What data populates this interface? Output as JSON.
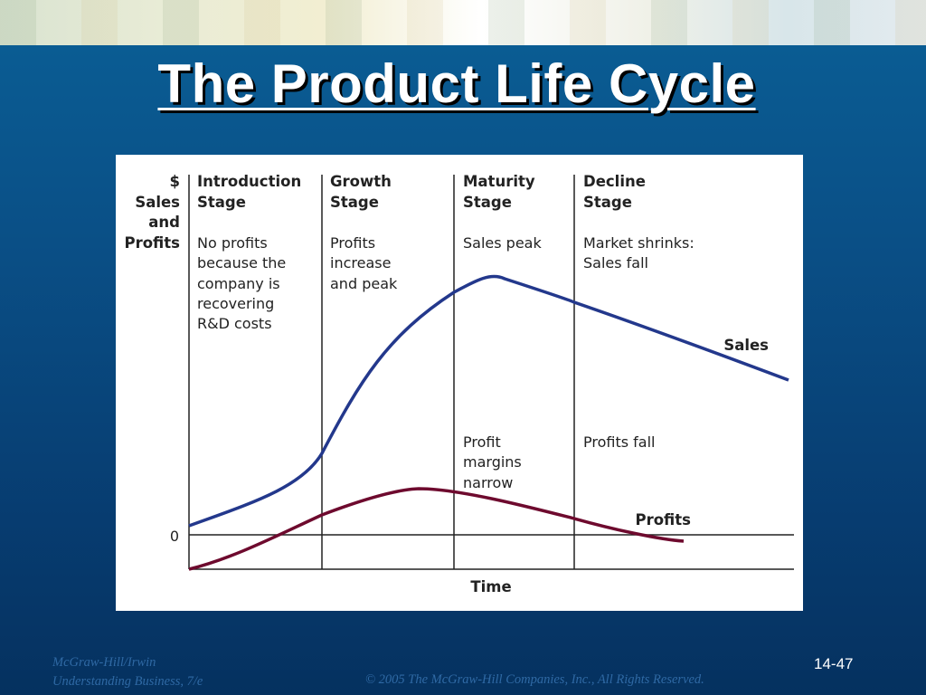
{
  "slide": {
    "title": "The Product Life Cycle",
    "page_number": "14-47",
    "footer_left_1": "McGraw-Hill/Irwin",
    "footer_left_2": "Understanding Business, 7/e",
    "footer_right": "© 2005 The McGraw-Hill Companies, Inc., All Rights Reserved."
  },
  "chart_data": {
    "type": "line",
    "title": "",
    "ylabel": [
      "$",
      "Sales",
      "and",
      "Profits"
    ],
    "xlabel": "Time",
    "zero_label": "0",
    "stages": [
      {
        "name": [
          "Introduction",
          "Stage"
        ],
        "note": [
          "No profits",
          "because the",
          "company is",
          "recovering",
          "R&D costs"
        ]
      },
      {
        "name": [
          "Growth",
          "Stage"
        ],
        "note": [
          "Profits",
          "increase",
          "and peak"
        ]
      },
      {
        "name": [
          "Maturity",
          "Stage"
        ],
        "note": [
          "Sales peak"
        ],
        "profit_note": [
          "Profit",
          "margins",
          "narrow"
        ]
      },
      {
        "name": [
          "Decline",
          "Stage"
        ],
        "note": [
          "Market shrinks:",
          "Sales fall"
        ],
        "profit_note": [
          "Profits fall"
        ]
      }
    ],
    "series": [
      {
        "name": "Sales",
        "color": "#23388c"
      },
      {
        "name": "Profits",
        "color": "#6e0a2e"
      }
    ]
  }
}
